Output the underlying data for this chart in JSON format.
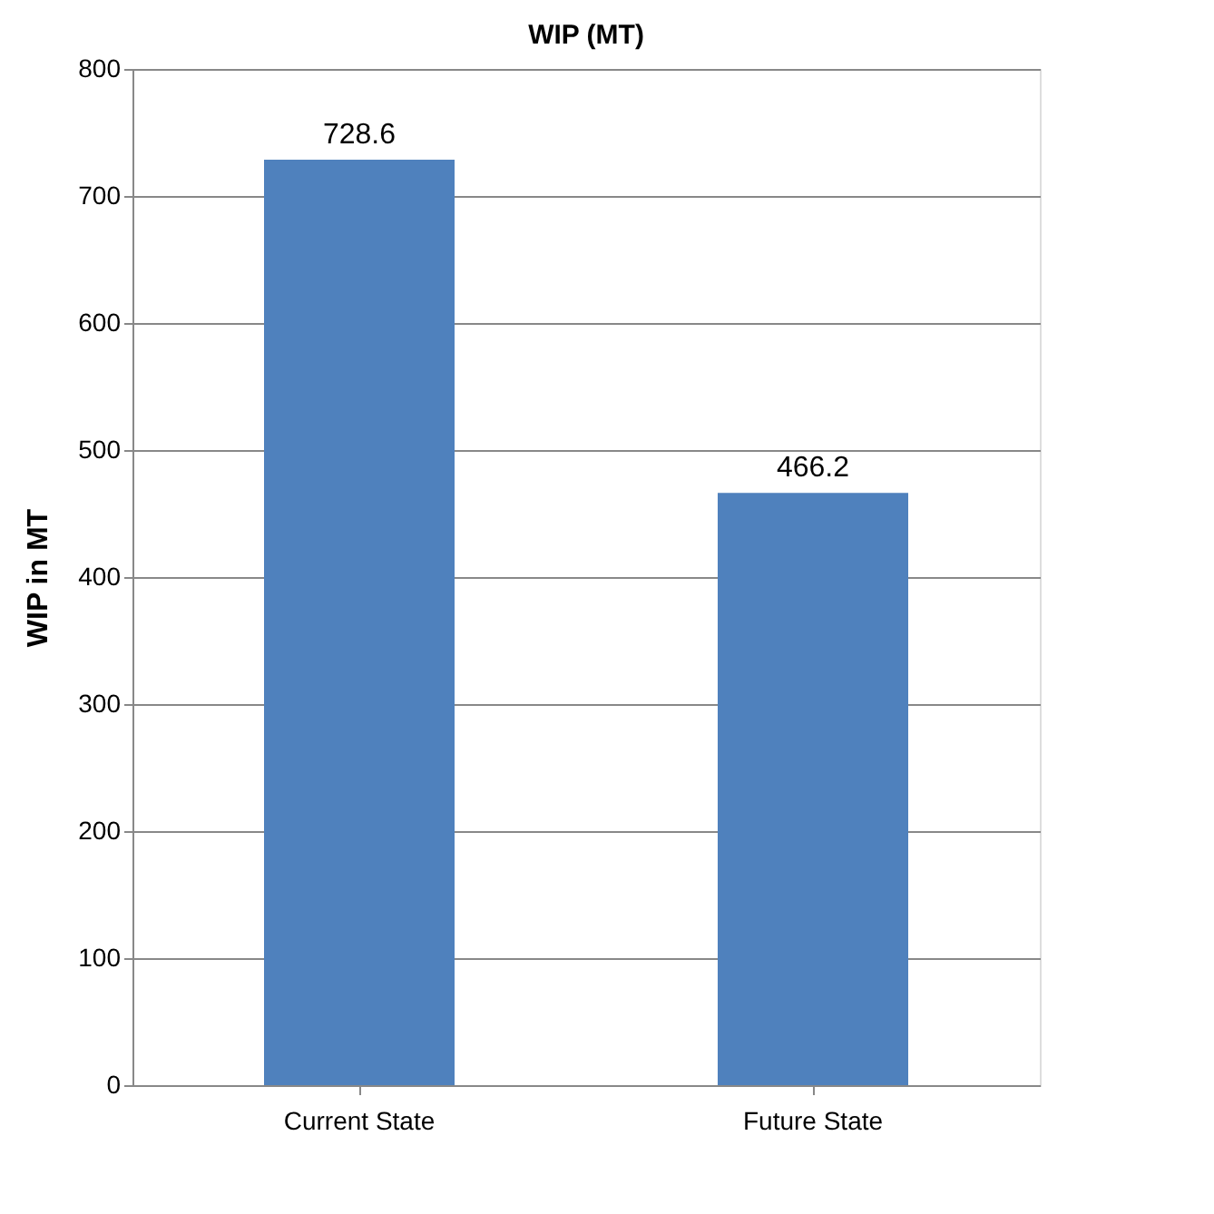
{
  "chart_data": {
    "type": "bar",
    "title": "WIP (MT)",
    "ylabel": "WIP in MT",
    "categories": [
      "Current State",
      "Future State"
    ],
    "values": [
      728.6,
      466.2
    ],
    "color": "#4f81bd",
    "ylim": [
      0,
      800
    ],
    "yticks": [
      0,
      100,
      200,
      300,
      400,
      500,
      600,
      700,
      800
    ],
    "grid": "y",
    "data_labels": true
  }
}
